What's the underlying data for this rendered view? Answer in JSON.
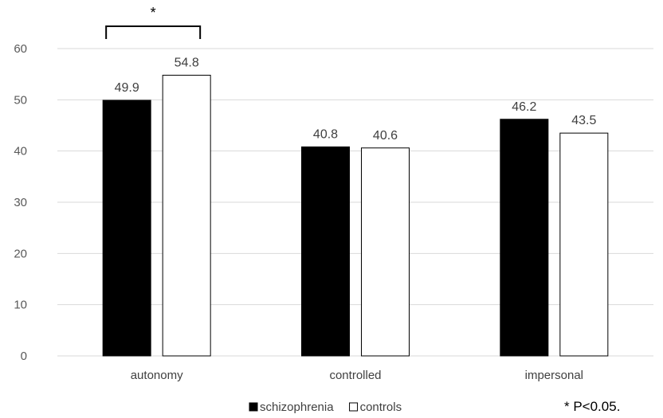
{
  "chart_data": {
    "type": "bar",
    "categories": [
      "autonomy",
      "controlled",
      "impersonal"
    ],
    "series": [
      {
        "name": "schizophrenia",
        "values": [
          49.9,
          40.8,
          46.2
        ],
        "color": "#000000"
      },
      {
        "name": "controls",
        "values": [
          54.8,
          40.6,
          43.5
        ],
        "color": "#ffffff"
      }
    ],
    "ylim": [
      0,
      60
    ],
    "yticks": [
      0,
      10,
      20,
      30,
      40,
      50,
      60
    ],
    "grid": true,
    "legend_position": "bottom",
    "data_labels": true,
    "annotations": {
      "significance_marker": "*",
      "significance_category": "autonomy",
      "footnote": "* P<0.05."
    }
  }
}
